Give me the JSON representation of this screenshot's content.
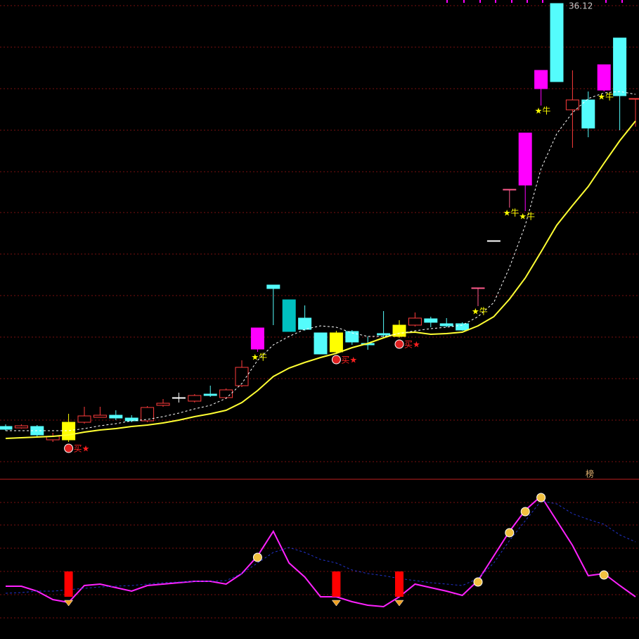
{
  "chart_data": {
    "type": "candlestick",
    "ylim": [
      9.12,
      36.32
    ],
    "hollow_color": "#ff3c3c",
    "candles": [
      {
        "o": 12.08,
        "h": 12.2,
        "l": 11.84,
        "c": 11.92,
        "color": "#54fcfc"
      },
      {
        "o": 12.0,
        "h": 12.2,
        "l": 11.96,
        "c": 12.12,
        "color": "#ff3c3c"
      },
      {
        "o": 12.08,
        "h": 12.16,
        "l": 11.52,
        "c": 11.6,
        "color": "#54fcfc"
      },
      {
        "o": 11.32,
        "h": 11.72,
        "l": 11.2,
        "c": 11.52,
        "color": "#ff3c3c"
      },
      {
        "o": 11.32,
        "h": 12.8,
        "l": 11.2,
        "c": 12.32,
        "color": "#ffff00"
      },
      {
        "o": 12.32,
        "h": 13.2,
        "l": 12.24,
        "c": 12.68,
        "color": "#ff3c3c"
      },
      {
        "o": 12.6,
        "h": 13.2,
        "l": 12.6,
        "c": 12.72,
        "color": "#ff3c3c"
      },
      {
        "o": 12.72,
        "h": 13.0,
        "l": 12.44,
        "c": 12.56,
        "color": "#54fcfc"
      },
      {
        "o": 12.56,
        "h": 12.72,
        "l": 12.32,
        "c": 12.4,
        "color": "#54fcfc"
      },
      {
        "o": 12.4,
        "h": 13.24,
        "l": 12.32,
        "c": 13.16,
        "color": "#ff3c3c"
      },
      {
        "o": 13.28,
        "h": 13.64,
        "l": 13.2,
        "c": 13.4,
        "color": "#ff3c3c"
      },
      {
        "o": 13.72,
        "h": 14.0,
        "l": 13.44,
        "c": 13.72,
        "color": "#ffffff"
      },
      {
        "o": 13.52,
        "h": 13.92,
        "l": 13.44,
        "c": 13.84,
        "color": "#ff3c3c"
      },
      {
        "o": 13.92,
        "h": 14.4,
        "l": 13.76,
        "c": 13.84,
        "color": "#54fcfc"
      },
      {
        "o": 13.72,
        "h": 14.24,
        "l": 13.64,
        "c": 14.16,
        "color": "#ff3c3c"
      },
      {
        "o": 14.4,
        "h": 15.84,
        "l": 14.32,
        "c": 15.44,
        "color": "#ff3c3c"
      },
      {
        "o": 16.48,
        "h": 17.68,
        "l": 16.32,
        "c": 17.68,
        "color": "#ff00ff"
      },
      {
        "o": 20.12,
        "h": 20.12,
        "l": 17.84,
        "c": 19.92,
        "color": "#54fcfc"
      },
      {
        "o": 19.28,
        "h": 19.28,
        "l": 17.48,
        "c": 17.48,
        "color": "#00c0c0"
      },
      {
        "o": 18.24,
        "h": 18.96,
        "l": 17.52,
        "c": 17.6,
        "color": "#54fcfc"
      },
      {
        "o": 17.4,
        "h": 17.4,
        "l": 16.2,
        "c": 16.2,
        "color": "#54fcfc"
      },
      {
        "o": 16.32,
        "h": 17.52,
        "l": 16.24,
        "c": 17.4,
        "color": "#ffff00"
      },
      {
        "o": 17.48,
        "h": 17.56,
        "l": 16.72,
        "c": 16.88,
        "color": "#54fcfc"
      },
      {
        "o": 16.8,
        "h": 17.2,
        "l": 16.44,
        "c": 16.72,
        "color": "#54fcfc"
      },
      {
        "o": 17.36,
        "h": 18.64,
        "l": 17.12,
        "c": 17.28,
        "color": "#54fcfc"
      },
      {
        "o": 17.2,
        "h": 18.12,
        "l": 17.12,
        "c": 17.84,
        "color": "#ffff00"
      },
      {
        "o": 17.84,
        "h": 18.56,
        "l": 17.76,
        "c": 18.24,
        "color": "#ff3c3c"
      },
      {
        "o": 18.2,
        "h": 18.32,
        "l": 17.72,
        "c": 18.0,
        "color": "#54fcfc"
      },
      {
        "o": 17.92,
        "h": 18.24,
        "l": 17.72,
        "c": 17.8,
        "color": "#54fcfc"
      },
      {
        "o": 17.92,
        "h": 18.0,
        "l": 17.52,
        "c": 17.56,
        "color": "#54fcfc"
      },
      {
        "o": 19.96,
        "h": 19.96,
        "l": 18.92,
        "c": 19.96,
        "color": "#ff5a8c"
      },
      {
        "o": 22.64,
        "h": 22.64,
        "l": 22.64,
        "c": 22.64,
        "color": "#ffffff"
      },
      {
        "o": 25.56,
        "h": 25.56,
        "l": 24.52,
        "c": 25.56,
        "color": "#ff5a8c"
      },
      {
        "o": 25.8,
        "h": 28.76,
        "l": 24.32,
        "c": 28.76,
        "color": "#ff00ff"
      },
      {
        "o": 31.28,
        "h": 32.32,
        "l": 30.32,
        "c": 32.32,
        "color": "#ff00ff"
      },
      {
        "o": 36.12,
        "h": 36.12,
        "l": 31.68,
        "c": 31.68,
        "color": "#54fcfc"
      },
      {
        "o": 30.08,
        "h": 32.32,
        "l": 27.92,
        "c": 30.64,
        "color": "#ff3c3c"
      },
      {
        "o": 30.64,
        "h": 31.12,
        "l": 28.52,
        "c": 29.04,
        "color": "#54fcfc"
      },
      {
        "o": 31.2,
        "h": 32.64,
        "l": 31.12,
        "c": 32.64,
        "color": "#ff00ff"
      },
      {
        "o": 34.16,
        "h": 34.16,
        "l": 28.92,
        "c": 30.88,
        "color": "#54fcfc"
      },
      {
        "o": 30.72,
        "h": 30.72,
        "l": 29.12,
        "c": 30.72,
        "color": "#ff3c3c"
      }
    ],
    "signals": [
      null,
      null,
      null,
      null,
      "买★",
      null,
      null,
      null,
      null,
      null,
      null,
      null,
      null,
      null,
      null,
      null,
      "★牛",
      null,
      null,
      null,
      null,
      "买★",
      null,
      null,
      null,
      "买★",
      null,
      null,
      null,
      null,
      "★牛",
      null,
      "★牛",
      "★牛",
      "★牛",
      null,
      null,
      null,
      "★牛",
      null,
      null
    ],
    "series": [
      {
        "color": "#ffff33",
        "style": "solid",
        "values": [
          11.4,
          11.44,
          11.48,
          11.52,
          11.6,
          11.76,
          11.88,
          11.96,
          12.08,
          12.16,
          12.28,
          12.44,
          12.64,
          12.8,
          13.0,
          13.44,
          14.12,
          14.92,
          15.4,
          15.72,
          16.0,
          16.24,
          16.56,
          16.8,
          17.12,
          17.4,
          17.44,
          17.32,
          17.36,
          17.44,
          17.8,
          18.32,
          19.32,
          20.52,
          22.0,
          23.52,
          24.64,
          25.72,
          27.04,
          28.32,
          29.44
        ]
      },
      {
        "color": "#ffffff",
        "style": "dashed",
        "values": [
          11.84,
          11.84,
          11.84,
          11.84,
          11.84,
          11.96,
          12.12,
          12.24,
          12.4,
          12.48,
          12.64,
          12.84,
          13.08,
          13.28,
          13.68,
          14.52,
          15.84,
          16.72,
          17.2,
          17.6,
          17.8,
          17.72,
          17.4,
          17.2,
          17.2,
          17.36,
          17.52,
          17.64,
          17.72,
          17.84,
          18.32,
          19.12,
          21.12,
          23.52,
          26.72,
          28.72,
          29.92,
          30.72,
          31.04,
          31.12,
          30.96
        ]
      }
    ],
    "rank_label": "榜",
    "indicator": {
      "ylim": [
        0,
        105
      ],
      "series": [
        {
          "color": "#ff22ff",
          "style": "solid",
          "values": [
            33.5,
            33.5,
            30,
            24,
            22,
            34,
            35,
            32.5,
            30,
            34,
            35,
            36,
            37,
            37,
            35,
            42.5,
            55,
            72.5,
            50,
            40,
            26,
            26,
            22.5,
            20,
            19,
            26,
            35,
            32.5,
            30,
            27,
            37.5,
            55,
            72.5,
            87.5,
            97.5,
            80,
            62.5,
            41,
            42.5,
            34,
            26
          ]
        },
        {
          "color": "#2233cc",
          "style": "dashed",
          "values": [
            28.5,
            29,
            30,
            30,
            31,
            32,
            33,
            33.5,
            34,
            35,
            36,
            36.5,
            37,
            37,
            37.5,
            42.5,
            50,
            57.5,
            61,
            57.5,
            52.5,
            50,
            45,
            42.5,
            41,
            39,
            37.5,
            36,
            35,
            34,
            39,
            50,
            66,
            80,
            94,
            92,
            85,
            81,
            77.5,
            70,
            65
          ]
        }
      ]
    }
  }
}
